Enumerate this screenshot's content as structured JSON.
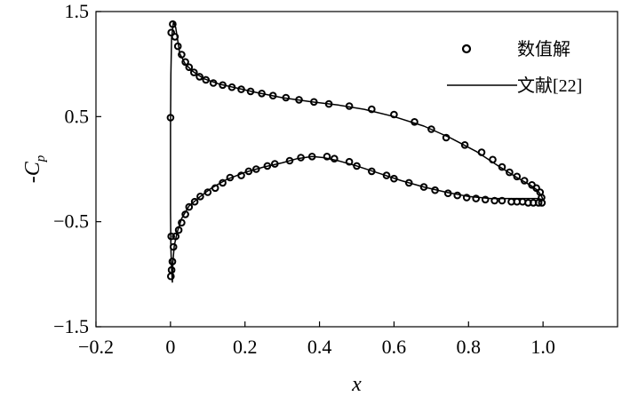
{
  "chart_data": {
    "type": "scatter",
    "xlabel": "x",
    "ylabel": "-C",
    "ylabel_sub": "p",
    "xlim": [
      -0.2,
      1.2
    ],
    "ylim": [
      -1.5,
      1.5
    ],
    "xticks": [
      -0.2,
      0,
      0.2,
      0.4,
      0.6,
      0.8,
      1.0
    ],
    "xtick_labels": [
      "−0.2",
      "0",
      "0.2",
      "0.4",
      "0.6",
      "0.8",
      "1.0"
    ],
    "yticks": [
      1.5,
      0.5,
      -0.5,
      -1.5
    ],
    "ytick_labels": [
      "1.5",
      "0.5",
      "−0.5",
      "−1.5"
    ],
    "grid": false,
    "legend_position": "top-right",
    "legend": {
      "markers_label": "数值解",
      "line_label": "文献[22]"
    },
    "series": [
      {
        "name": "数值解",
        "kind": "markers",
        "points": [
          [
            0.0,
            0.49
          ],
          [
            0.002,
            1.3
          ],
          [
            0.006,
            1.38
          ],
          [
            0.012,
            1.26
          ],
          [
            0.02,
            1.17
          ],
          [
            0.03,
            1.09
          ],
          [
            0.04,
            1.02
          ],
          [
            0.05,
            0.97
          ],
          [
            0.063,
            0.92
          ],
          [
            0.078,
            0.88
          ],
          [
            0.095,
            0.85
          ],
          [
            0.115,
            0.82
          ],
          [
            0.14,
            0.8
          ],
          [
            0.165,
            0.78
          ],
          [
            0.19,
            0.76
          ],
          [
            0.215,
            0.74
          ],
          [
            0.245,
            0.72
          ],
          [
            0.275,
            0.7
          ],
          [
            0.31,
            0.68
          ],
          [
            0.345,
            0.66
          ],
          [
            0.385,
            0.64
          ],
          [
            0.425,
            0.62
          ],
          [
            0.48,
            0.6
          ],
          [
            0.54,
            0.57
          ],
          [
            0.6,
            0.52
          ],
          [
            0.655,
            0.45
          ],
          [
            0.7,
            0.38
          ],
          [
            0.74,
            0.3
          ],
          [
            0.79,
            0.23
          ],
          [
            0.835,
            0.16
          ],
          [
            0.865,
            0.09
          ],
          [
            0.89,
            0.02
          ],
          [
            0.91,
            -0.03
          ],
          [
            0.93,
            -0.07
          ],
          [
            0.95,
            -0.11
          ],
          [
            0.97,
            -0.15
          ],
          [
            0.982,
            -0.18
          ],
          [
            0.992,
            -0.22
          ],
          [
            0.996,
            -0.27
          ],
          [
            0.997,
            -0.32
          ],
          [
            0.988,
            -0.32
          ],
          [
            0.974,
            -0.32
          ],
          [
            0.96,
            -0.32
          ],
          [
            0.945,
            -0.31
          ],
          [
            0.93,
            -0.31
          ],
          [
            0.915,
            -0.31
          ],
          [
            0.89,
            -0.3
          ],
          [
            0.87,
            -0.3
          ],
          [
            0.845,
            -0.29
          ],
          [
            0.82,
            -0.28
          ],
          [
            0.795,
            -0.27
          ],
          [
            0.77,
            -0.25
          ],
          [
            0.745,
            -0.23
          ],
          [
            0.71,
            -0.2
          ],
          [
            0.68,
            -0.17
          ],
          [
            0.64,
            -0.13
          ],
          [
            0.6,
            -0.09
          ],
          [
            0.58,
            -0.06
          ],
          [
            0.54,
            -0.02
          ],
          [
            0.5,
            0.03
          ],
          [
            0.48,
            0.07
          ],
          [
            0.44,
            0.1
          ],
          [
            0.42,
            0.12
          ],
          [
            0.38,
            0.12
          ],
          [
            0.35,
            0.11
          ],
          [
            0.32,
            0.08
          ],
          [
            0.28,
            0.05
          ],
          [
            0.26,
            0.03
          ],
          [
            0.23,
            0.0
          ],
          [
            0.21,
            -0.02
          ],
          [
            0.19,
            -0.06
          ],
          [
            0.16,
            -0.08
          ],
          [
            0.14,
            -0.13
          ],
          [
            0.12,
            -0.18
          ],
          [
            0.1,
            -0.22
          ],
          [
            0.08,
            -0.26
          ],
          [
            0.065,
            -0.31
          ],
          [
            0.05,
            -0.36
          ],
          [
            0.04,
            -0.43
          ],
          [
            0.03,
            -0.51
          ],
          [
            0.022,
            -0.58
          ],
          [
            0.014,
            -0.64
          ],
          [
            0.008,
            -0.74
          ],
          [
            0.005,
            -0.88
          ],
          [
            0.003,
            -0.96
          ],
          [
            0.001,
            -1.02
          ],
          [
            0.002,
            -0.64
          ]
        ]
      },
      {
        "name": "文献[22]",
        "kind": "line",
        "points": [
          [
            0.005,
            -1.08
          ],
          [
            0.003,
            -0.95
          ],
          [
            0.001,
            -0.75
          ],
          [
            0.0,
            -0.4
          ],
          [
            0.0,
            0.0
          ],
          [
            0.0,
            0.4
          ],
          [
            0.001,
            0.9
          ],
          [
            0.003,
            1.25
          ],
          [
            0.008,
            1.4
          ],
          [
            0.014,
            1.35
          ],
          [
            0.025,
            1.1
          ],
          [
            0.04,
            1.0
          ],
          [
            0.06,
            0.93
          ],
          [
            0.09,
            0.86
          ],
          [
            0.13,
            0.81
          ],
          [
            0.18,
            0.77
          ],
          [
            0.23,
            0.73
          ],
          [
            0.3,
            0.68
          ],
          [
            0.38,
            0.64
          ],
          [
            0.45,
            0.61
          ],
          [
            0.52,
            0.57
          ],
          [
            0.6,
            0.5
          ],
          [
            0.68,
            0.41
          ],
          [
            0.75,
            0.3
          ],
          [
            0.82,
            0.17
          ],
          [
            0.88,
            0.03
          ],
          [
            0.93,
            -0.08
          ],
          [
            0.965,
            -0.15
          ],
          [
            0.985,
            -0.2
          ],
          [
            0.995,
            -0.25
          ],
          [
            1.0,
            -0.29
          ],
          [
            0.985,
            -0.28
          ],
          [
            0.95,
            -0.28
          ],
          [
            0.9,
            -0.28
          ],
          [
            0.86,
            -0.28
          ],
          [
            0.8,
            -0.26
          ],
          [
            0.74,
            -0.22
          ],
          [
            0.68,
            -0.17
          ],
          [
            0.62,
            -0.11
          ],
          [
            0.56,
            -0.04
          ],
          [
            0.5,
            0.03
          ],
          [
            0.45,
            0.08
          ],
          [
            0.41,
            0.11
          ],
          [
            0.38,
            0.12
          ],
          [
            0.34,
            0.1
          ],
          [
            0.3,
            0.06
          ],
          [
            0.25,
            0.02
          ],
          [
            0.2,
            -0.03
          ],
          [
            0.15,
            -0.1
          ],
          [
            0.11,
            -0.18
          ],
          [
            0.08,
            -0.26
          ],
          [
            0.05,
            -0.35
          ],
          [
            0.03,
            -0.47
          ],
          [
            0.018,
            -0.6
          ],
          [
            0.01,
            -0.73
          ],
          [
            0.006,
            -0.9
          ],
          [
            0.005,
            -1.08
          ]
        ]
      }
    ]
  }
}
